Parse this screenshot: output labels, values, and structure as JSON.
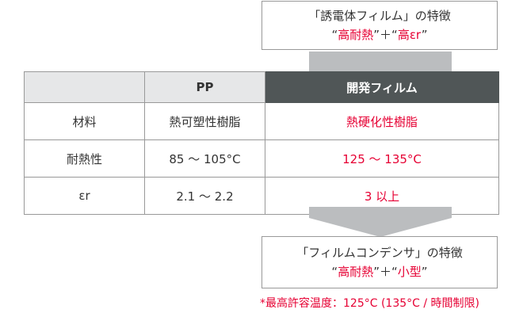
{
  "top_box": {
    "title": "「誘電体フィルム」の特徴",
    "q1": "“",
    "f1": "高耐熱",
    "q2": "”＋“",
    "f2": "高εr",
    "q3": "”"
  },
  "table": {
    "headers": [
      "",
      "PP",
      "開発フィルム"
    ],
    "rows": [
      [
        "材料",
        "熱可塑性樹脂",
        "熱硬化性樹脂"
      ],
      [
        "耐熱性",
        "85 ～ 105°C",
        "125 ～ 135°C"
      ],
      [
        "εr",
        "2.1 ～ 2.2",
        "3 以上"
      ]
    ]
  },
  "bottom_box": {
    "title": "「フィルムコンデンサ」の特徴",
    "q1": "“",
    "f1": "高耐熱",
    "q2": "”＋“",
    "f2": "小型",
    "q3": "”"
  },
  "footnote": "*最高許容温度：125°C (135°C / 時間制限)",
  "colors": {
    "accent": "#e60033",
    "header_dark": "#505657",
    "header_light": "#e6e7e8",
    "arrow": "#bbbdbf"
  }
}
